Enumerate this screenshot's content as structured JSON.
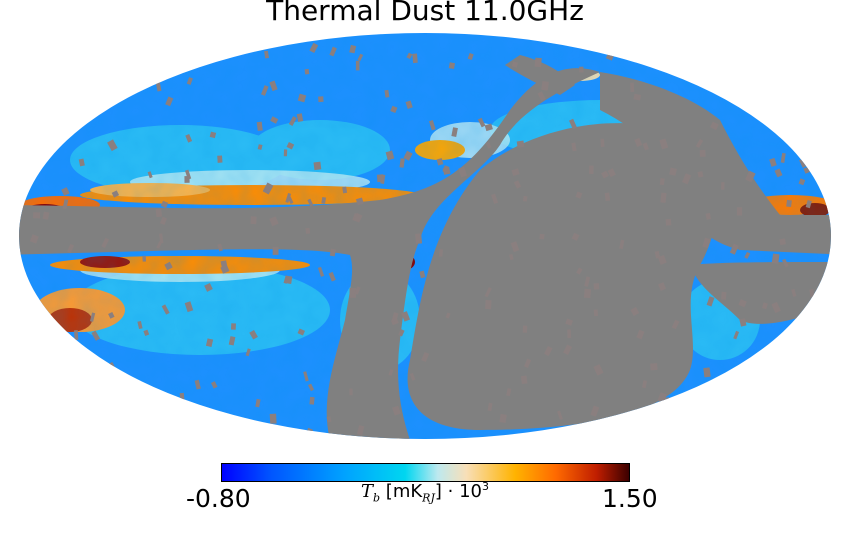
{
  "map": {
    "title": "Thermal Dust 11.0GHz",
    "projection": "mollweide",
    "mask_color": "#808080",
    "colormap": [
      "#0000ff",
      "#00a2ff",
      "#00d6f0",
      "#f8dfb8",
      "#ffb300",
      "#ff6a00",
      "#3c0000"
    ]
  },
  "colorbar": {
    "min_label": "-0.80",
    "max_label": "1.50",
    "label_symbol": "T",
    "label_sub_b": "b",
    "label_unit_open": " [mK",
    "label_sub_rj": "RJ",
    "label_unit_close": "] · 10",
    "label_exp": "3"
  }
}
